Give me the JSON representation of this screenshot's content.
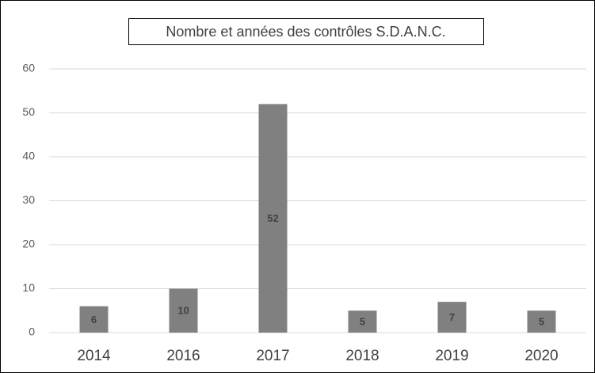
{
  "chart_data": {
    "type": "bar",
    "title": "Nombre et années des contrôles S.D.A.N.C.",
    "categories": [
      "2014",
      "2016",
      "2017",
      "2018",
      "2019",
      "2020"
    ],
    "values": [
      6,
      10,
      52,
      5,
      7,
      5
    ],
    "color": "#808080",
    "ylim": [
      0,
      60
    ],
    "yticks": [
      0,
      10,
      20,
      30,
      40,
      50,
      60
    ],
    "grid": true
  }
}
